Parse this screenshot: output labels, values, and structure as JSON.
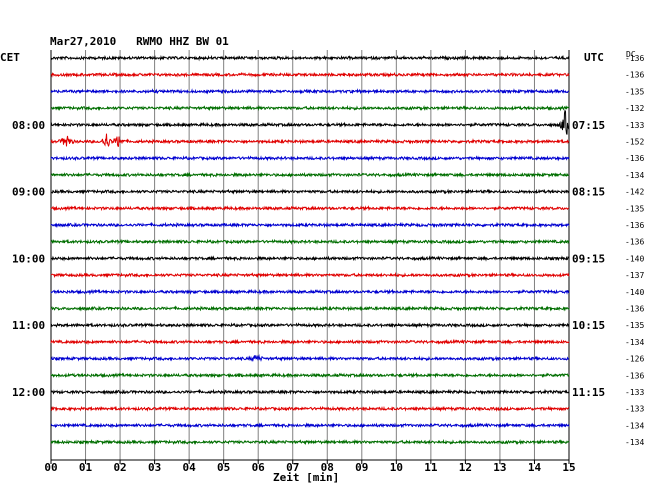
{
  "chart_data": {
    "type": "line",
    "title": "Mar27,2010   RWMO HHZ BW 01",
    "left_axis_label": "CET",
    "right_axis_label": "UTC",
    "dc_header": "DC",
    "xlabel": "Zeit [min]",
    "x_ticks": [
      "00",
      "01",
      "02",
      "03",
      "04",
      "05",
      "06",
      "07",
      "08",
      "09",
      "10",
      "11",
      "12",
      "13",
      "14",
      "15"
    ],
    "xlim": [
      0,
      15
    ],
    "grid": true,
    "trace_colors": [
      "#000000",
      "#e00000",
      "#0000d0",
      "#006e00"
    ],
    "time_labels_left": [
      {
        "row": 4,
        "text": "08:00"
      },
      {
        "row": 8,
        "text": "09:00"
      },
      {
        "row": 12,
        "text": "10:00"
      },
      {
        "row": 16,
        "text": "11:00"
      },
      {
        "row": 20,
        "text": "12:00"
      }
    ],
    "time_labels_right": [
      {
        "row": 4,
        "text": "07:15"
      },
      {
        "row": 8,
        "text": "08:15"
      },
      {
        "row": 12,
        "text": "09:15"
      },
      {
        "row": 16,
        "text": "10:15"
      },
      {
        "row": 20,
        "text": "11:15"
      }
    ],
    "dc_values": [
      -136,
      -136,
      -135,
      -132,
      -133,
      -152,
      -136,
      -134,
      -142,
      -135,
      -136,
      -136,
      -140,
      -137,
      -140,
      -136,
      -135,
      -134,
      -126,
      -136,
      -133,
      -133,
      -134,
      -134
    ],
    "events": [
      {
        "row": 4,
        "minute": 14.9,
        "amplitude": 1.0
      },
      {
        "row": 5,
        "minute": 0.45,
        "amplitude": 0.55
      },
      {
        "row": 5,
        "minute": 1.6,
        "amplitude": 0.6
      },
      {
        "row": 5,
        "minute": 1.95,
        "amplitude": 0.45
      },
      {
        "row": 18,
        "minute": 5.95,
        "amplitude": 0.3
      }
    ]
  }
}
